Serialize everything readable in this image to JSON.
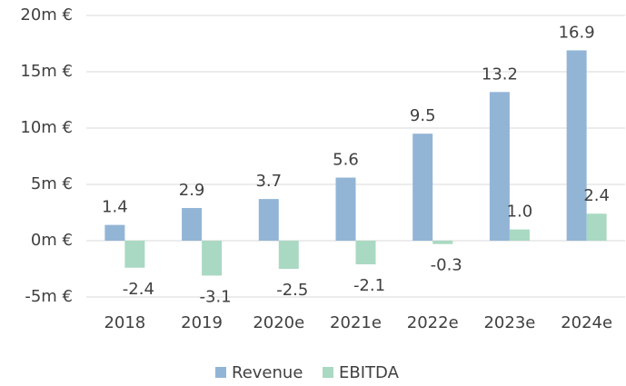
{
  "chart_data": {
    "type": "bar",
    "categories": [
      "2018",
      "2019",
      "2020e",
      "2021e",
      "2022e",
      "2023e",
      "2024e"
    ],
    "series": [
      {
        "name": "Revenue",
        "color": "#92b5d6",
        "values": [
          1.4,
          2.9,
          3.7,
          5.6,
          9.5,
          13.2,
          16.9
        ]
      },
      {
        "name": "EBITDA",
        "color": "#a9d9c2",
        "values": [
          -2.4,
          -3.1,
          -2.5,
          -2.1,
          -0.3,
          1,
          2.4
        ],
        "value_labels": [
          "-2.4",
          "-3.1",
          "-2.5",
          "-2.1",
          "-0.3",
          "1.0",
          "2.4"
        ]
      }
    ],
    "ylim": [
      -5,
      20
    ],
    "yticks": [
      {
        "value": -5,
        "label": "-5m €"
      },
      {
        "value": 0,
        "label": "0m €"
      },
      {
        "value": 5,
        "label": "5m €"
      },
      {
        "value": 10,
        "label": "10m €"
      },
      {
        "value": 15,
        "label": "15m €"
      },
      {
        "value": 20,
        "label": "20m €"
      }
    ],
    "grid": true,
    "legend": "bottom"
  }
}
